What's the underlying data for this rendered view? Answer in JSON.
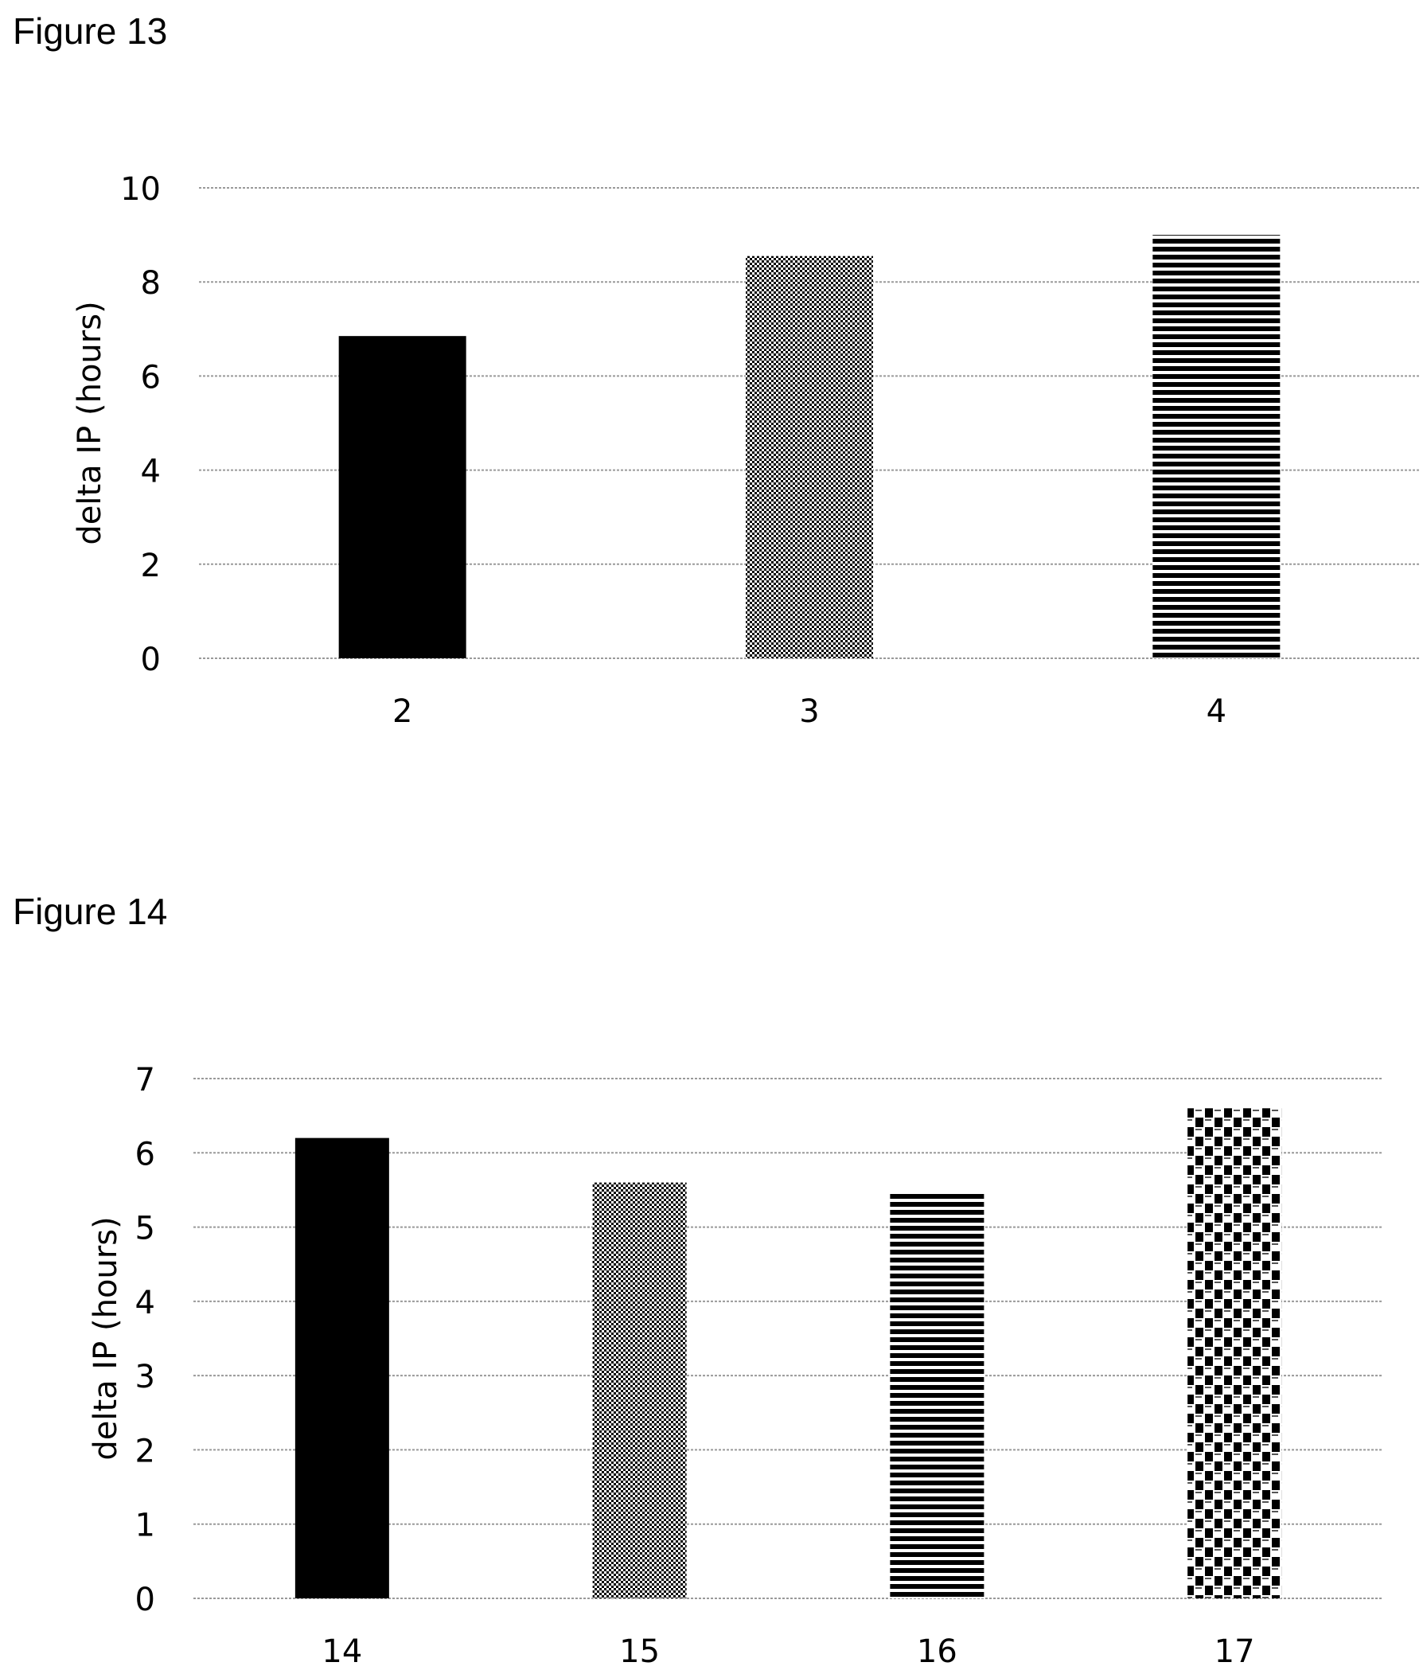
{
  "figures": [
    {
      "label": "Figure 13",
      "chart_data": {
        "type": "bar",
        "categories": [
          "2",
          "3",
          "4"
        ],
        "values": [
          6.85,
          8.55,
          9.0
        ],
        "patterns": [
          "solid",
          "dots",
          "hstripes"
        ],
        "ylabel": "delta IP (hours)",
        "xlabel": "",
        "ylim": [
          0,
          10
        ],
        "yticks": [
          0,
          2,
          4,
          6,
          8,
          10
        ],
        "grid": true,
        "legend": false
      }
    },
    {
      "label": "Figure 14",
      "chart_data": {
        "type": "bar",
        "categories": [
          "14",
          "15",
          "16",
          "17"
        ],
        "values": [
          6.2,
          5.6,
          5.45,
          6.6
        ],
        "patterns": [
          "solid",
          "dots",
          "hstripes",
          "checker"
        ],
        "ylabel": "delta IP (hours)",
        "xlabel": "",
        "ylim": [
          0,
          7
        ],
        "yticks": [
          0,
          1,
          2,
          3,
          4,
          5,
          6,
          7
        ],
        "grid": true,
        "legend": false
      }
    }
  ],
  "colors": {
    "bar": "#000000",
    "grid": "#9a9a9a",
    "background": "#ffffff"
  }
}
